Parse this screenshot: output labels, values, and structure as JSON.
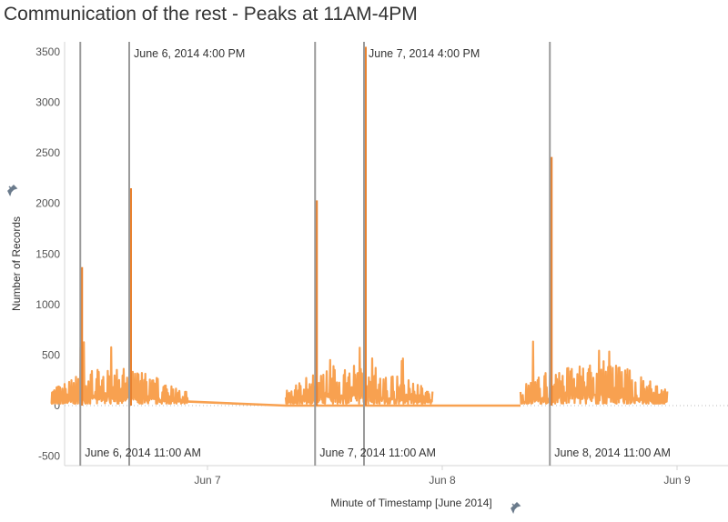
{
  "title": "Communication of the rest - Peaks at 11AM-4PM",
  "colors": {
    "series": "#f8a150",
    "peak": "#e9822f",
    "refline": "#9a9a9a",
    "axis": "#d4d4d4"
  },
  "chart_data": {
    "type": "line",
    "title": "Communication of the rest - Peaks at 11AM-4PM",
    "xlabel": "Minute of Timestamp [June 2014]",
    "ylabel": "Number of Records",
    "x_range": [
      "2014-06-06 08:00",
      "2014-06-09 05:00"
    ],
    "ylim": [
      -600,
      3600
    ],
    "y_ticks": [
      3500,
      3000,
      2500,
      2000,
      1500,
      1000,
      500,
      0,
      -500
    ],
    "x_ticks": [
      {
        "label": "Jun 7",
        "at": "2014-06-07 00:00"
      },
      {
        "label": "Jun 8",
        "at": "2014-06-08 00:00"
      },
      {
        "label": "Jun 9",
        "at": "2014-06-09 00:00"
      }
    ],
    "reference_lines": [
      {
        "label": "June 6, 2014 11:00 AM",
        "at": "2014-06-06 11:00",
        "label_position": "bottom"
      },
      {
        "label": "June 6, 2014 4:00 PM",
        "at": "2014-06-06 16:00",
        "label_position": "top"
      },
      {
        "label": "June 7, 2014 11:00 AM",
        "at": "2014-06-07 11:00",
        "label_position": "bottom"
      },
      {
        "label": "June 7, 2014 4:00 PM",
        "at": "2014-06-07 16:00",
        "label_position": "top"
      },
      {
        "label": "June 8, 2014 11:00 AM",
        "at": "2014-06-08 11:00",
        "label_position": "bottom"
      }
    ],
    "peaks": [
      {
        "at": "2014-06-06 11:00",
        "value": 1370
      },
      {
        "at": "2014-06-06 16:00",
        "value": 2150
      },
      {
        "at": "2014-06-07 11:00",
        "value": 2030
      },
      {
        "at": "2014-06-07 16:00",
        "value": 3550
      },
      {
        "at": "2014-06-08 11:00",
        "value": 2460
      }
    ],
    "activity_periods": [
      {
        "start": "2014-06-06 08:00",
        "end": "2014-06-06 22:00",
        "typical": [
          20,
          380
        ],
        "max": 640
      },
      {
        "start": "2014-06-07 08:00",
        "end": "2014-06-07 23:00",
        "typical": [
          20,
          420
        ],
        "max": 580
      },
      {
        "start": "2014-06-08 08:00",
        "end": "2014-06-08 23:00",
        "typical": [
          20,
          450
        ],
        "max": 640
      }
    ],
    "overnight_series": [
      {
        "x": "2014-06-06 22:00",
        "y": 40
      },
      {
        "x": "2014-06-07 08:00",
        "y": 0
      },
      {
        "x": "2014-06-07 23:00",
        "y": 0
      },
      {
        "x": "2014-06-08 08:00",
        "y": 0
      }
    ],
    "zero_line": "dotted",
    "grid": false
  }
}
